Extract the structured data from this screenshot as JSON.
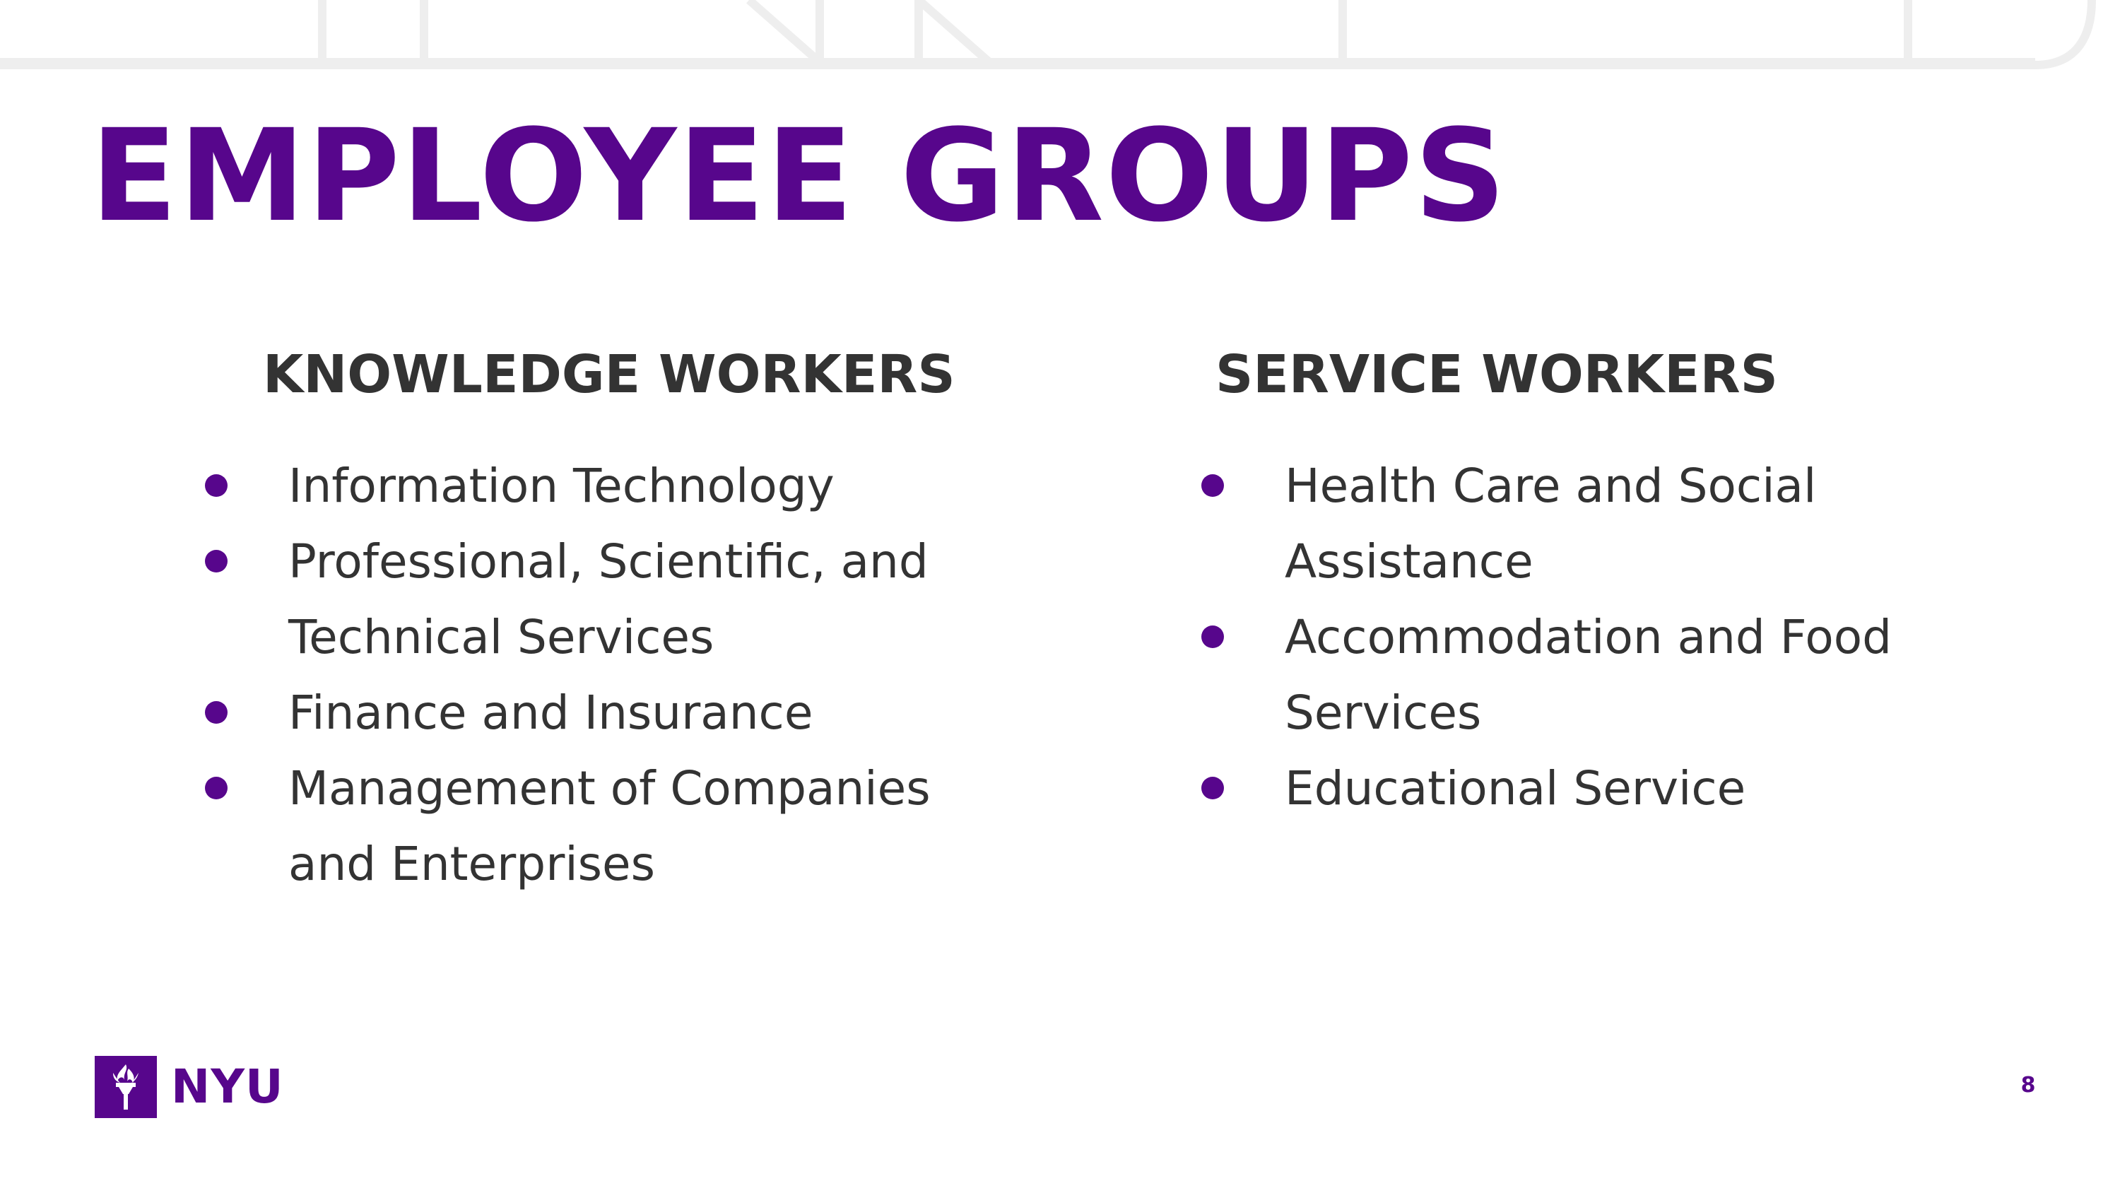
{
  "slide": {
    "title": "EMPLOYEE GROUPS",
    "page_number": "8"
  },
  "colors": {
    "brand_purple": "#57068c",
    "body_text": "#333333",
    "decoration_gray": "#eeeeee"
  },
  "knowledge_workers": {
    "heading": "KNOWLEDGE WORKERS",
    "items": [
      "Information Technology",
      "Professional, Scientific, and Technical Services",
      "Finance and Insurance",
      "Management of Companies and Enterprises"
    ]
  },
  "service_workers": {
    "heading": "SERVICE WORKERS",
    "items": [
      "Health Care and Social Assistance",
      "Accommodation and Food Services",
      "Educational Service"
    ]
  },
  "footer": {
    "logo_text": "NYU",
    "logo_icon": "torch-icon"
  }
}
